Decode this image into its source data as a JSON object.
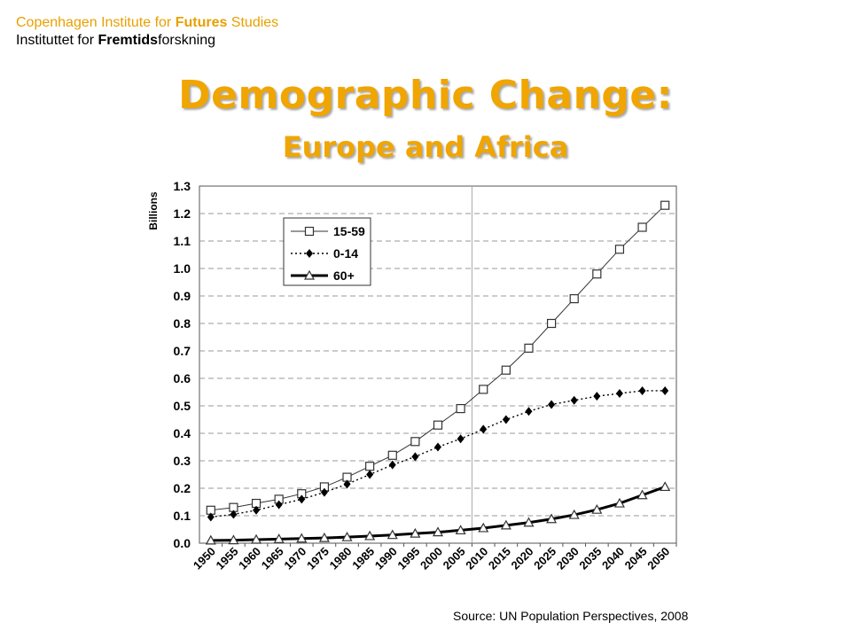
{
  "header": {
    "org_en_pre": "Copenhagen Institute for ",
    "org_en_bold": "Futures",
    "org_en_post": " Studies",
    "org_da_pre": "Instituttet for ",
    "org_da_bold": "Fremtids",
    "org_da_post": "forskning"
  },
  "title": "Demographic Change:",
  "subtitle": "Europe and Africa",
  "source": "Source: UN Population Perspectives, 2008",
  "colors": {
    "title": "#f0a500",
    "org": "#e8a000",
    "grid": "#999999"
  },
  "chart_data": {
    "type": "line",
    "ylabel": "Billions",
    "xlabel": "",
    "ylim": [
      0,
      1.3
    ],
    "yticks": [
      "0.0",
      "0.1",
      "0.2",
      "0.3",
      "0.4",
      "0.5",
      "0.6",
      "0.7",
      "0.8",
      "0.9",
      "1.0",
      "1.1",
      "1.2",
      "1.3"
    ],
    "categories": [
      "1950",
      "1955",
      "1960",
      "1965",
      "1970",
      "1975",
      "1980",
      "1985",
      "1990",
      "1995",
      "2000",
      "2005",
      "2010",
      "2015",
      "2020",
      "2025",
      "2030",
      "2035",
      "2040",
      "2045",
      "2050"
    ],
    "reference_line": "2005-2010",
    "grid": true,
    "legend_position": "top-left",
    "series": [
      {
        "name": "15-59",
        "marker": "square",
        "style": "solid-thin",
        "values": [
          0.12,
          0.13,
          0.145,
          0.16,
          0.18,
          0.205,
          0.24,
          0.28,
          0.32,
          0.37,
          0.43,
          0.49,
          0.56,
          0.63,
          0.71,
          0.8,
          0.89,
          0.98,
          1.07,
          1.15,
          1.23
        ]
      },
      {
        "name": "0-14",
        "marker": "diamond",
        "style": "dotted",
        "values": [
          0.095,
          0.105,
          0.12,
          0.14,
          0.16,
          0.185,
          0.215,
          0.25,
          0.285,
          0.315,
          0.35,
          0.38,
          0.415,
          0.45,
          0.48,
          0.505,
          0.52,
          0.535,
          0.545,
          0.555,
          0.555
        ]
      },
      {
        "name": "60+",
        "marker": "triangle",
        "style": "solid-thick",
        "values": [
          0.01,
          0.011,
          0.013,
          0.015,
          0.017,
          0.019,
          0.022,
          0.026,
          0.03,
          0.035,
          0.04,
          0.047,
          0.055,
          0.065,
          0.075,
          0.088,
          0.103,
          0.122,
          0.145,
          0.175,
          0.205
        ]
      }
    ]
  }
}
